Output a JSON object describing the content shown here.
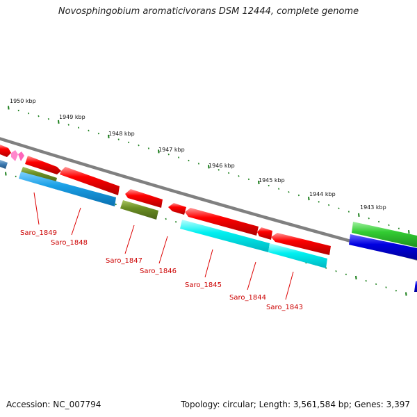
{
  "title": "Novosphingobium aromaticivorans DSM 12444, complete genome",
  "accession_text": "Accession: NC_007794",
  "summary_text": "Topology: circular; Length: 3,561,584 bp; Genes: 3,397",
  "kbp_labels": [
    "1950 kbp",
    "1949 kbp",
    "1948 kbp",
    "1947 kbp",
    "1946 kbp",
    "1945 kbp",
    "1944 kbp",
    "1943 kbp"
  ],
  "gene_labels": [
    "Saro_1849",
    "Saro_1848",
    "Saro_1847",
    "Saro_1846",
    "Saro_1845",
    "Saro_1844",
    "Saro_1843"
  ],
  "colors": {
    "cds": "#ff0000",
    "cog_cyan": "#00e5ee",
    "cog_blue": "#1a9fe0",
    "cog_olive": "#6b8e23",
    "cog_green": "#33cc33",
    "cog_darkblue": "#0000dd",
    "rna_pink": "#ff88cc",
    "backbone": "#808080",
    "ticks": "#1a7f1a",
    "label": "#cc0000"
  }
}
